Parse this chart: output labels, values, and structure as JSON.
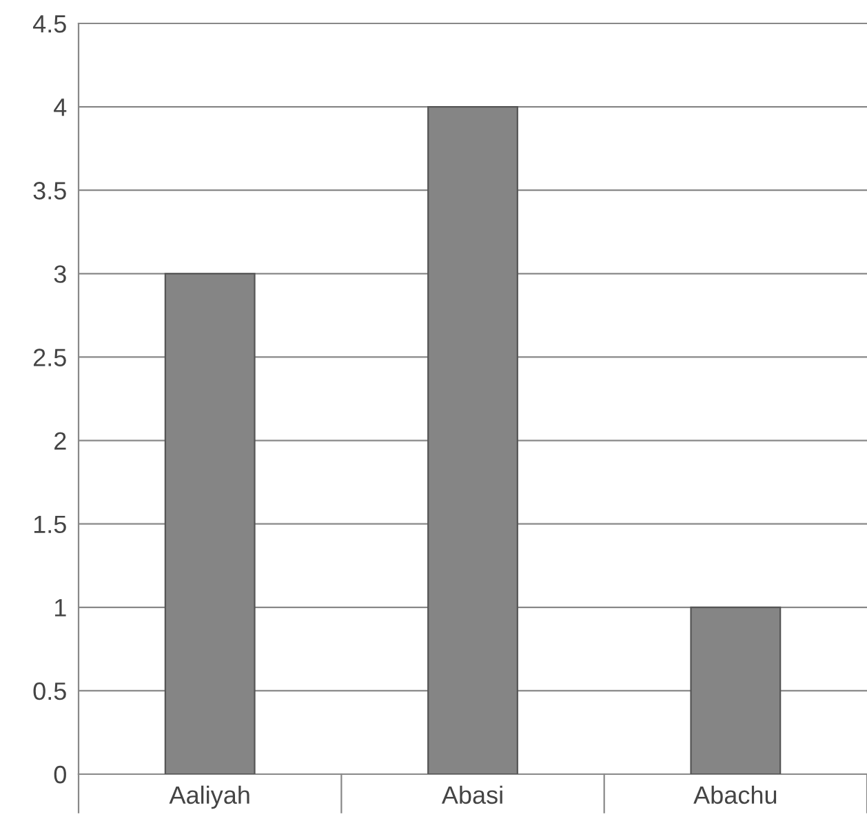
{
  "chart_data": {
    "type": "bar",
    "categories": [
      "Aaliyah",
      "Abasi",
      "Abachu"
    ],
    "values": [
      3,
      4,
      1
    ],
    "color": "#858585",
    "ylim": [
      0,
      4.5
    ],
    "yticks": [
      0,
      0.5,
      1,
      1.5,
      2,
      2.5,
      3,
      3.5,
      4,
      4.5
    ],
    "grid": "y",
    "legend": false
  }
}
